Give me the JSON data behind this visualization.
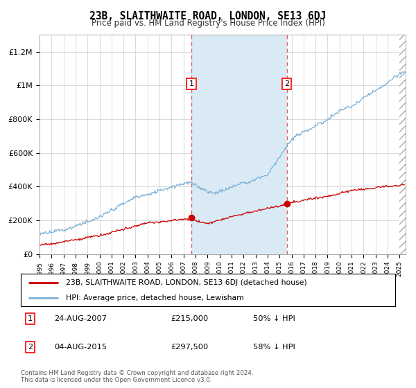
{
  "title": "23B, SLAITHWAITE ROAD, LONDON, SE13 6DJ",
  "subtitle": "Price paid vs. HM Land Registry's House Price Index (HPI)",
  "ylabel_ticks": [
    "£0",
    "£200K",
    "£400K",
    "£600K",
    "£800K",
    "£1M",
    "£1.2M"
  ],
  "ytick_values": [
    0,
    200000,
    400000,
    600000,
    800000,
    1000000,
    1200000
  ],
  "ylim": [
    0,
    1300000
  ],
  "hpi_color": "#7ab0d8",
  "price_color": "#cc0000",
  "sale1_year": 2007.65,
  "sale1_price": 215000,
  "sale1_date": "24-AUG-2007",
  "sale1_pct": "50% ↓ HPI",
  "sale2_year": 2015.6,
  "sale2_price": 297500,
  "sale2_date": "04-AUG-2015",
  "sale2_pct": "58% ↓ HPI",
  "legend_line1": "23B, SLAITHWAITE ROAD, LONDON, SE13 6DJ (detached house)",
  "legend_line2": "HPI: Average price, detached house, Lewisham",
  "footer": "Contains HM Land Registry data © Crown copyright and database right 2024.\nThis data is licensed under the Open Government Licence v3.0.",
  "xlim_start": 1995.0,
  "xlim_end": 2025.5,
  "shade_color": "#daeaf5",
  "hatch_color": "#ccddee"
}
